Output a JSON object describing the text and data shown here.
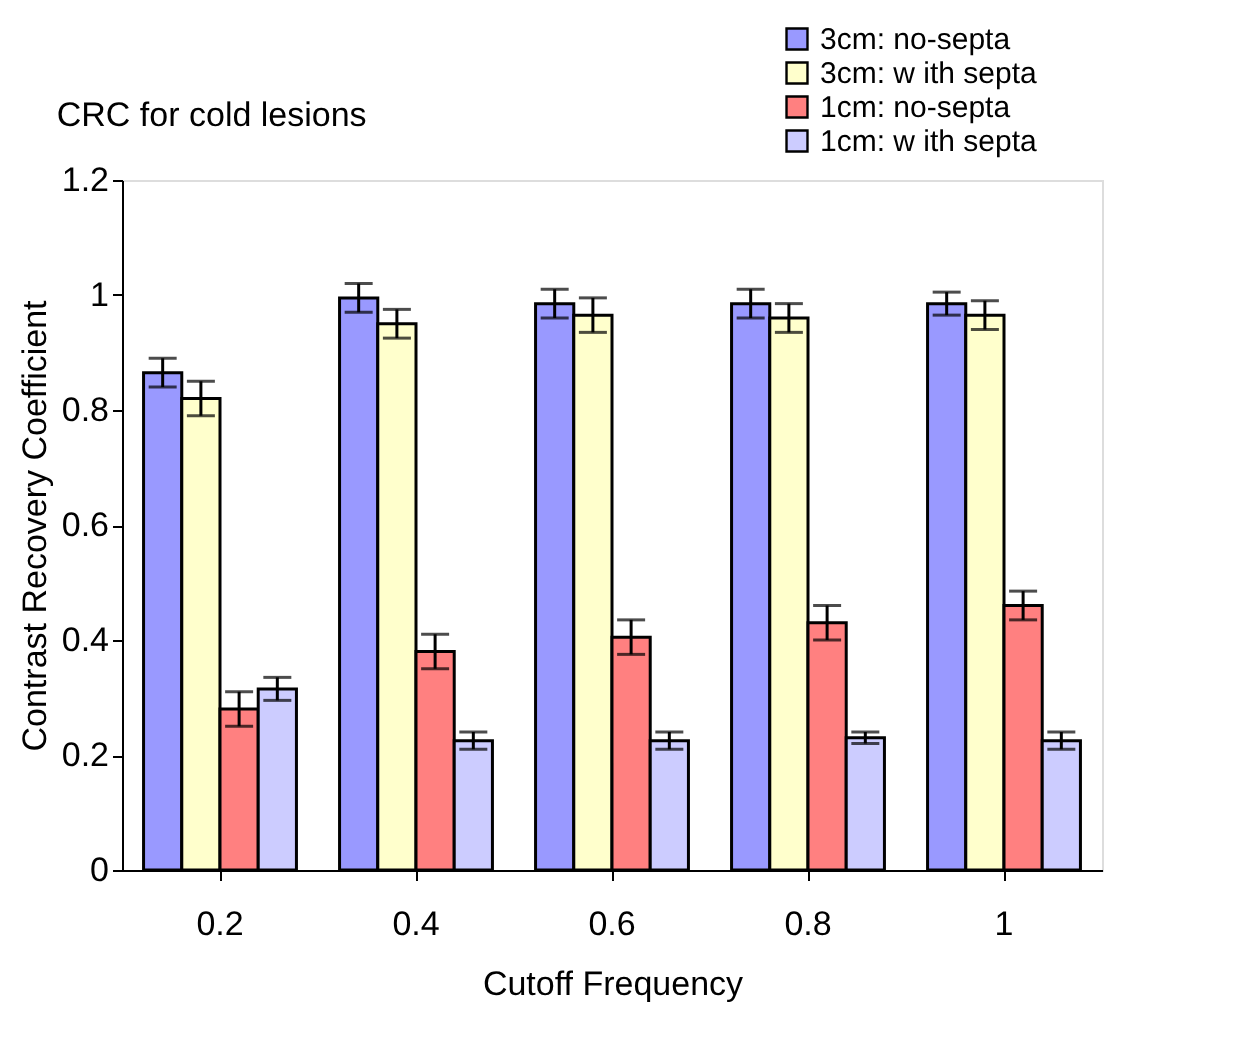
{
  "chart_data": {
    "type": "bar",
    "title": "CRC for cold lesions",
    "xlabel": "Cutoff Frequency",
    "ylabel": "Contrast Recovery Coefficient",
    "categories": [
      "0.2",
      "0.4",
      "0.6",
      "0.8",
      "1"
    ],
    "series": [
      {
        "name": "3cm: no-septa",
        "color": "#9999ff",
        "values": [
          0.865,
          0.995,
          0.985,
          0.985,
          0.985
        ],
        "errors": [
          0.025,
          0.025,
          0.025,
          0.025,
          0.02
        ]
      },
      {
        "name": "3cm: w ith septa",
        "color": "#ffffcc",
        "values": [
          0.82,
          0.95,
          0.965,
          0.96,
          0.965
        ],
        "errors": [
          0.03,
          0.025,
          0.03,
          0.025,
          0.025
        ]
      },
      {
        "name": "1cm: no-septa",
        "color": "#ff8080",
        "values": [
          0.28,
          0.38,
          0.405,
          0.43,
          0.46
        ],
        "errors": [
          0.03,
          0.03,
          0.03,
          0.03,
          0.025
        ]
      },
      {
        "name": "1cm: w ith septa",
        "color": "#ccccff",
        "values": [
          0.315,
          0.225,
          0.225,
          0.23,
          0.225
        ],
        "errors": [
          0.02,
          0.015,
          0.015,
          0.01,
          0.015
        ]
      }
    ],
    "ylim": [
      0,
      1.2
    ],
    "yticks": [
      0,
      0.2,
      0.4,
      0.6,
      0.8,
      1,
      1.2
    ],
    "grid": false,
    "legend": "top right"
  }
}
